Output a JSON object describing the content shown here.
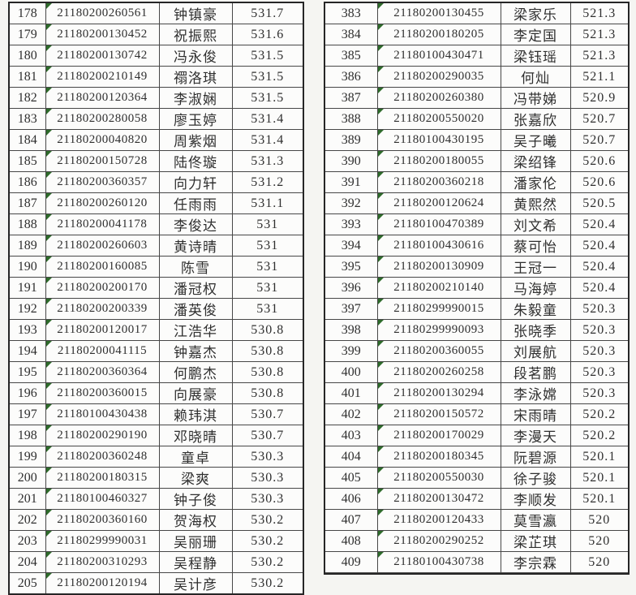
{
  "colors": {
    "indicator_green": "#2e6b2b",
    "grid_line": "#474747",
    "outer_border": "#262626",
    "text": "#2f2f2f",
    "page_bg": "#f5f5f2",
    "cell_bg": "#fcfcfb"
  },
  "left_table": {
    "rows": [
      [
        "178",
        "21180200260561",
        "钟镇豪",
        "531.7"
      ],
      [
        "179",
        "21180200130452",
        "祝振熙",
        "531.6"
      ],
      [
        "180",
        "21180200130742",
        "冯永俊",
        "531.5"
      ],
      [
        "181",
        "21180200210149",
        "禤洛琪",
        "531.5"
      ],
      [
        "182",
        "21180200120364",
        "李淑娴",
        "531.5"
      ],
      [
        "183",
        "21180200280058",
        "廖玉婷",
        "531.4"
      ],
      [
        "184",
        "21180200040820",
        "周紫烟",
        "531.4"
      ],
      [
        "185",
        "21180200150728",
        "陆佟璇",
        "531.3"
      ],
      [
        "186",
        "21180200360357",
        "向力轩",
        "531.2"
      ],
      [
        "187",
        "21180200260120",
        "任雨雨",
        "531.1"
      ],
      [
        "188",
        "21180200041178",
        "李俊达",
        "531"
      ],
      [
        "189",
        "21180200260603",
        "黄诗晴",
        "531"
      ],
      [
        "190",
        "21180200160085",
        "陈雪",
        "531"
      ],
      [
        "191",
        "21180200200170",
        "潘冠权",
        "531"
      ],
      [
        "192",
        "21180200200339",
        "潘英俊",
        "531"
      ],
      [
        "193",
        "21180200120017",
        "江浩华",
        "530.8"
      ],
      [
        "194",
        "21180200041115",
        "钟嘉杰",
        "530.8"
      ],
      [
        "195",
        "21180200360364",
        "何鹏杰",
        "530.8"
      ],
      [
        "196",
        "21180200360015",
        "向展豪",
        "530.8"
      ],
      [
        "197",
        "21180100430438",
        "赖玮淇",
        "530.7"
      ],
      [
        "198",
        "21180200290190",
        "邓晓晴",
        "530.7"
      ],
      [
        "199",
        "21180200360248",
        "童卓",
        "530.3"
      ],
      [
        "200",
        "21180200180315",
        "梁爽",
        "530.3"
      ],
      [
        "201",
        "21180100460327",
        "钟子俊",
        "530.3"
      ],
      [
        "202",
        "21180200360160",
        "贺海权",
        "530.2"
      ],
      [
        "203",
        "21180299990031",
        "吴丽珊",
        "530.2"
      ],
      [
        "204",
        "21180200310293",
        "吴程静",
        "530.2"
      ],
      [
        "205",
        "21180200120194",
        "吴计彦",
        "530.2"
      ]
    ]
  },
  "right_table": {
    "rows": [
      [
        "383",
        "21180200130455",
        "梁家乐",
        "521.3"
      ],
      [
        "384",
        "21180200180205",
        "李定国",
        "521.3"
      ],
      [
        "385",
        "21180100430471",
        "梁钰瑶",
        "521.3"
      ],
      [
        "386",
        "21180200290035",
        "何灿",
        "521.1"
      ],
      [
        "387",
        "21180200260380",
        "冯带娣",
        "520.9"
      ],
      [
        "388",
        "21180200550020",
        "张嘉欣",
        "520.7"
      ],
      [
        "389",
        "21180100430195",
        "吴子曦",
        "520.7"
      ],
      [
        "390",
        "21180200180055",
        "梁绍锋",
        "520.6"
      ],
      [
        "391",
        "21180200360218",
        "潘家伦",
        "520.6"
      ],
      [
        "392",
        "21180200120624",
        "黄熙然",
        "520.5"
      ],
      [
        "393",
        "21180100470389",
        "刘文希",
        "520.4"
      ],
      [
        "394",
        "21180100430616",
        "蔡可怡",
        "520.4"
      ],
      [
        "395",
        "21180200130909",
        "王冠一",
        "520.4"
      ],
      [
        "396",
        "21180200210140",
        "马海婷",
        "520.4"
      ],
      [
        "397",
        "21180299990015",
        "朱毅童",
        "520.3"
      ],
      [
        "398",
        "21180299990093",
        "张晓季",
        "520.3"
      ],
      [
        "399",
        "21180200360055",
        "刘展航",
        "520.3"
      ],
      [
        "400",
        "21180200260258",
        "段茗鹏",
        "520.3"
      ],
      [
        "401",
        "21180200130294",
        "李泳嫦",
        "520.3"
      ],
      [
        "402",
        "21180200150572",
        "宋雨晴",
        "520.2"
      ],
      [
        "403",
        "21180200170029",
        "李漫天",
        "520.2"
      ],
      [
        "404",
        "21180200180345",
        "阮碧源",
        "520.1"
      ],
      [
        "405",
        "21180200550030",
        "徐子骏",
        "520.1"
      ],
      [
        "406",
        "21180200130472",
        "李顺发",
        "520.1"
      ],
      [
        "407",
        "21180200120433",
        "莫雪瀛",
        "520"
      ],
      [
        "408",
        "21180200290252",
        "梁芷琪",
        "520"
      ],
      [
        "409",
        "21180100430738",
        "李宗霖",
        "520"
      ],
      [
        "",
        "",
        "",
        ""
      ]
    ]
  }
}
